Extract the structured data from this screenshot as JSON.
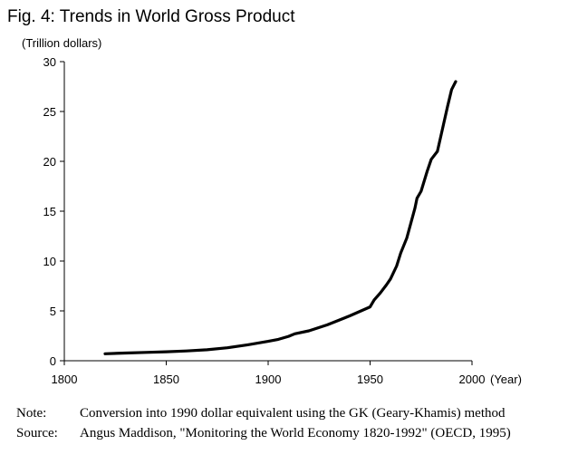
{
  "title": "Fig. 4: Trends in World Gross Product",
  "unit_label": "(Trillion dollars)",
  "notes": [
    {
      "label": "Note:",
      "text": "Conversion into 1990 dollar equivalent using the GK (Geary-Khamis) method"
    },
    {
      "label": "Source:",
      "text": "Angus Maddison, \"Monitoring the World Economy 1820-1992\" (OECD, 1995)"
    }
  ],
  "chart_data": {
    "type": "line",
    "title": "Fig. 4: Trends in World Gross Product",
    "ylabel": "(Trillion dollars)",
    "xlabel": "(Year)",
    "xlim": [
      1800,
      2000
    ],
    "ylim": [
      0,
      30
    ],
    "x_ticks": [
      "1800",
      "1850",
      "1900",
      "1950",
      "2000"
    ],
    "y_ticks": [
      "0",
      "5",
      "10",
      "15",
      "20",
      "25",
      "30"
    ],
    "grid": false,
    "line_color": "#000000",
    "series": [
      {
        "x": [
          1820,
          1830,
          1840,
          1850,
          1860,
          1870,
          1880,
          1890,
          1900,
          1905,
          1910,
          1913,
          1920,
          1929,
          1940,
          1950,
          1952,
          1955,
          1958,
          1960,
          1963,
          1965,
          1968,
          1970,
          1972,
          1973,
          1975,
          1978,
          1980,
          1983,
          1985,
          1988,
          1990,
          1992
        ],
        "y": [
          0.7,
          0.77,
          0.84,
          0.9,
          0.98,
          1.1,
          1.3,
          1.6,
          1.95,
          2.15,
          2.45,
          2.7,
          3.0,
          3.6,
          4.5,
          5.4,
          6.1,
          6.8,
          7.6,
          8.2,
          9.5,
          10.8,
          12.3,
          13.8,
          15.3,
          16.3,
          17.0,
          19.0,
          20.2,
          21.0,
          22.8,
          25.5,
          27.2,
          28.0
        ]
      }
    ]
  }
}
